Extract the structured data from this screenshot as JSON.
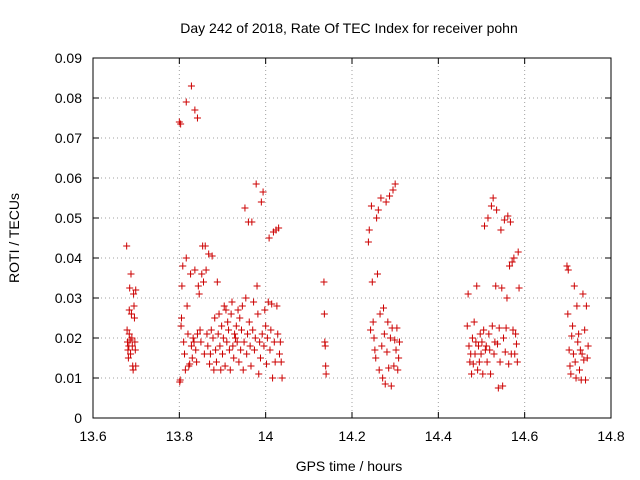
{
  "chart_data": {
    "type": "scatter",
    "title": "Day 242 of 2018, Rate Of TEC Index for receiver pohn",
    "xlabel": "GPS time / hours",
    "ylabel": "ROTI / TECUs",
    "xlim": [
      13.6,
      14.8
    ],
    "ylim": [
      0,
      0.09
    ],
    "xticks": [
      13.6,
      13.8,
      14.0,
      14.2,
      14.4,
      14.6,
      14.8
    ],
    "xtick_labels": [
      "13.6",
      "13.8",
      "14",
      "14.2",
      "14.4",
      "14.6",
      "14.8"
    ],
    "yticks": [
      0,
      0.01,
      0.02,
      0.03,
      0.04,
      0.05,
      0.06,
      0.07,
      0.08,
      0.09
    ],
    "ytick_labels": [
      "0",
      "0.01",
      "0.02",
      "0.03",
      "0.04",
      "0.05",
      "0.06",
      "0.07",
      "0.08",
      "0.09"
    ],
    "grid": true,
    "marker": "+",
    "marker_color": "#cc0000",
    "series": [
      {
        "name": "ROTI",
        "points": [
          [
            13.678,
            0.043
          ],
          [
            13.679,
            0.022
          ],
          [
            13.68,
            0.019
          ],
          [
            13.681,
            0.017
          ],
          [
            13.682,
            0.015
          ],
          [
            13.683,
            0.018
          ],
          [
            13.684,
            0.021
          ],
          [
            13.684,
            0.027
          ],
          [
            13.685,
            0.0325
          ],
          [
            13.686,
            0.0195
          ],
          [
            13.687,
            0.016
          ],
          [
            13.688,
            0.036
          ],
          [
            13.689,
            0.026
          ],
          [
            13.69,
            0.02
          ],
          [
            13.691,
            0.018
          ],
          [
            13.692,
            0.013
          ],
          [
            13.693,
            0.012
          ],
          [
            13.694,
            0.031
          ],
          [
            13.695,
            0.028
          ],
          [
            13.696,
            0.025
          ],
          [
            13.697,
            0.019
          ],
          [
            13.698,
            0.017
          ],
          [
            13.699,
            0.013
          ],
          [
            13.699,
            0.032
          ],
          [
            13.8,
            0.074
          ],
          [
            13.803,
            0.0735
          ],
          [
            13.816,
            0.079
          ],
          [
            13.828,
            0.083
          ],
          [
            13.836,
            0.077
          ],
          [
            13.842,
            0.075
          ],
          [
            13.801,
            0.009
          ],
          [
            13.802,
            0.0095
          ],
          [
            13.804,
            0.023
          ],
          [
            13.805,
            0.025
          ],
          [
            13.806,
            0.033
          ],
          [
            13.808,
            0.038
          ],
          [
            13.81,
            0.019
          ],
          [
            13.812,
            0.016
          ],
          [
            13.814,
            0.012
          ],
          [
            13.816,
            0.04
          ],
          [
            13.818,
            0.028
          ],
          [
            13.82,
            0.021
          ],
          [
            13.822,
            0.013
          ],
          [
            13.824,
            0.0135
          ],
          [
            13.826,
            0.036
          ],
          [
            13.828,
            0.018
          ],
          [
            13.83,
            0.015
          ],
          [
            13.832,
            0.02
          ],
          [
            13.834,
            0.019
          ],
          [
            13.836,
            0.037
          ],
          [
            13.838,
            0.017
          ],
          [
            13.84,
            0.014
          ],
          [
            13.842,
            0.021
          ],
          [
            13.844,
            0.033
          ],
          [
            13.846,
            0.031
          ],
          [
            13.848,
            0.022
          ],
          [
            13.85,
            0.019
          ],
          [
            13.852,
            0.036
          ],
          [
            13.854,
            0.043
          ],
          [
            13.856,
            0.034
          ],
          [
            13.858,
            0.016
          ],
          [
            13.86,
            0.043
          ],
          [
            13.862,
            0.037
          ],
          [
            13.864,
            0.021
          ],
          [
            13.866,
            0.018
          ],
          [
            13.868,
            0.041
          ],
          [
            13.87,
            0.0135
          ],
          [
            13.872,
            0.016
          ],
          [
            13.874,
            0.022
          ],
          [
            13.876,
            0.0405
          ],
          [
            13.878,
            0.02
          ],
          [
            13.88,
            0.012
          ],
          [
            13.882,
            0.025
          ],
          [
            13.884,
            0.017
          ],
          [
            13.886,
            0.014
          ],
          [
            13.888,
            0.034
          ],
          [
            13.89,
            0.021
          ],
          [
            13.892,
            0.026
          ],
          [
            13.894,
            0.018
          ],
          [
            13.896,
            0.012
          ],
          [
            13.898,
            0.023
          ],
          [
            13.9,
            0.016
          ],
          [
            13.902,
            0.02
          ],
          [
            13.904,
            0.028
          ],
          [
            13.906,
            0.013
          ],
          [
            13.908,
            0.027
          ],
          [
            13.91,
            0.019
          ],
          [
            13.912,
            0.024
          ],
          [
            13.914,
            0.022
          ],
          [
            13.916,
            0.017
          ],
          [
            13.918,
            0.012
          ],
          [
            13.92,
            0.026
          ],
          [
            13.922,
            0.029
          ],
          [
            13.924,
            0.018
          ],
          [
            13.926,
            0.015
          ],
          [
            13.928,
            0.021
          ],
          [
            13.93,
            0.02
          ],
          [
            13.932,
            0.023
          ],
          [
            13.934,
            0.019
          ],
          [
            13.936,
            0.027
          ],
          [
            13.938,
            0.014
          ],
          [
            13.94,
            0.025
          ],
          [
            13.942,
            0.017
          ],
          [
            13.944,
            0.022
          ],
          [
            13.946,
            0.028
          ],
          [
            13.948,
            0.012
          ],
          [
            13.95,
            0.019
          ],
          [
            13.952,
            0.0525
          ],
          [
            13.954,
            0.03
          ],
          [
            13.956,
            0.016
          ],
          [
            13.958,
            0.021
          ],
          [
            13.96,
            0.049
          ],
          [
            13.962,
            0.024
          ],
          [
            13.964,
            0.018
          ],
          [
            13.966,
            0.013
          ],
          [
            13.968,
            0.049
          ],
          [
            13.97,
            0.022
          ],
          [
            13.972,
            0.029
          ],
          [
            13.974,
            0.017
          ],
          [
            13.976,
            0.02
          ],
          [
            13.978,
            0.0585
          ],
          [
            13.98,
            0.033
          ],
          [
            13.982,
            0.026
          ],
          [
            13.984,
            0.011
          ],
          [
            13.986,
            0.019
          ],
          [
            13.988,
            0.015
          ],
          [
            13.99,
            0.054
          ],
          [
            13.992,
            0.021
          ],
          [
            13.994,
            0.0565
          ],
          [
            13.996,
            0.018
          ],
          [
            13.998,
            0.027
          ],
          [
            14.0,
            0.023
          ],
          [
            14.002,
            0.0135
          ],
          [
            14.004,
            0.02
          ],
          [
            14.006,
            0.029
          ],
          [
            14.008,
            0.045
          ],
          [
            14.01,
            0.017
          ],
          [
            14.012,
            0.022
          ],
          [
            14.014,
            0.0285
          ],
          [
            14.016,
            0.01
          ],
          [
            14.018,
            0.0465
          ],
          [
            14.02,
            0.019
          ],
          [
            14.022,
            0.014
          ],
          [
            14.024,
            0.047
          ],
          [
            14.026,
            0.028
          ],
          [
            14.028,
            0.021
          ],
          [
            14.03,
            0.0475
          ],
          [
            14.032,
            0.016
          ],
          [
            14.034,
            0.019
          ],
          [
            14.036,
            0.014
          ],
          [
            14.038,
            0.01
          ],
          [
            14.135,
            0.034
          ],
          [
            14.136,
            0.026
          ],
          [
            14.137,
            0.019
          ],
          [
            14.138,
            0.018
          ],
          [
            14.139,
            0.013
          ],
          [
            14.14,
            0.011
          ],
          [
            14.238,
            0.044
          ],
          [
            14.24,
            0.047
          ],
          [
            14.243,
            0.022
          ],
          [
            14.245,
            0.053
          ],
          [
            14.247,
            0.034
          ],
          [
            14.249,
            0.024
          ],
          [
            14.251,
            0.02
          ],
          [
            14.253,
            0.017
          ],
          [
            14.255,
            0.015
          ],
          [
            14.257,
            0.05
          ],
          [
            14.259,
            0.036
          ],
          [
            14.261,
            0.052
          ],
          [
            14.263,
            0.012
          ],
          [
            14.265,
            0.026
          ],
          [
            14.267,
            0.055
          ],
          [
            14.269,
            0.018
          ],
          [
            14.271,
            0.01
          ],
          [
            14.273,
            0.0275
          ],
          [
            14.275,
            0.021
          ],
          [
            14.277,
            0.0085
          ],
          [
            14.279,
            0.054
          ],
          [
            14.281,
            0.0165
          ],
          [
            14.283,
            0.024
          ],
          [
            14.285,
            0.0125
          ],
          [
            14.287,
            0.0555
          ],
          [
            14.289,
            0.02
          ],
          [
            14.291,
            0.008
          ],
          [
            14.293,
            0.0225
          ],
          [
            14.295,
            0.057
          ],
          [
            14.297,
            0.013
          ],
          [
            14.299,
            0.0195
          ],
          [
            14.3,
            0.0585
          ],
          [
            14.302,
            0.017
          ],
          [
            14.304,
            0.0225
          ],
          [
            14.306,
            0.012
          ],
          [
            14.308,
            0.015
          ],
          [
            14.31,
            0.019
          ],
          [
            14.467,
            0.023
          ],
          [
            14.469,
            0.031
          ],
          [
            14.471,
            0.018
          ],
          [
            14.473,
            0.014
          ],
          [
            14.475,
            0.016
          ],
          [
            14.477,
            0.011
          ],
          [
            14.479,
            0.02
          ],
          [
            14.481,
            0.0135
          ],
          [
            14.483,
            0.024
          ],
          [
            14.485,
            0.016
          ],
          [
            14.487,
            0.019
          ],
          [
            14.489,
            0.033
          ],
          [
            14.491,
            0.012
          ],
          [
            14.493,
            0.018
          ],
          [
            14.495,
            0.014
          ],
          [
            14.497,
            0.021
          ],
          [
            14.499,
            0.016
          ],
          [
            14.501,
            0.019
          ],
          [
            14.503,
            0.011
          ],
          [
            14.505,
            0.022
          ],
          [
            14.507,
            0.048
          ],
          [
            14.509,
            0.017
          ],
          [
            14.511,
            0.018
          ],
          [
            14.513,
            0.014
          ],
          [
            14.515,
            0.05
          ],
          [
            14.517,
            0.021
          ],
          [
            14.519,
            0.017
          ],
          [
            14.521,
            0.011
          ],
          [
            14.523,
            0.053
          ],
          [
            14.525,
            0.023
          ],
          [
            14.527,
            0.055
          ],
          [
            14.529,
            0.016
          ],
          [
            14.531,
            0.019
          ],
          [
            14.533,
            0.033
          ],
          [
            14.535,
            0.052
          ],
          [
            14.537,
            0.0185
          ],
          [
            14.539,
            0.0075
          ],
          [
            14.541,
            0.0225
          ],
          [
            14.543,
            0.014
          ],
          [
            14.545,
            0.047
          ],
          [
            14.547,
            0.0325
          ],
          [
            14.549,
            0.008
          ],
          [
            14.551,
            0.02
          ],
          [
            14.553,
            0.0495
          ],
          [
            14.555,
            0.0165
          ],
          [
            14.557,
            0.0225
          ],
          [
            14.559,
            0.03
          ],
          [
            14.561,
            0.0505
          ],
          [
            14.563,
            0.0135
          ],
          [
            14.565,
            0.038
          ],
          [
            14.567,
            0.049
          ],
          [
            14.569,
            0.016
          ],
          [
            14.571,
            0.039
          ],
          [
            14.573,
            0.022
          ],
          [
            14.575,
            0.04
          ],
          [
            14.577,
            0.016
          ],
          [
            14.579,
            0.021
          ],
          [
            14.581,
            0.0185
          ],
          [
            14.583,
            0.014
          ],
          [
            14.585,
            0.0415
          ],
          [
            14.587,
            0.0325
          ],
          [
            14.698,
            0.038
          ],
          [
            14.7,
            0.026
          ],
          [
            14.701,
            0.037
          ],
          [
            14.703,
            0.017
          ],
          [
            14.705,
            0.013
          ],
          [
            14.707,
            0.011
          ],
          [
            14.709,
            0.0205
          ],
          [
            14.711,
            0.023
          ],
          [
            14.713,
            0.016
          ],
          [
            14.715,
            0.033
          ],
          [
            14.717,
            0.014
          ],
          [
            14.719,
            0.01
          ],
          [
            14.721,
            0.028
          ],
          [
            14.723,
            0.019
          ],
          [
            14.725,
            0.021
          ],
          [
            14.727,
            0.012
          ],
          [
            14.729,
            0.017
          ],
          [
            14.731,
            0.0095
          ],
          [
            14.733,
            0.016
          ],
          [
            14.735,
            0.031
          ],
          [
            14.737,
            0.0145
          ],
          [
            14.739,
            0.022
          ],
          [
            14.741,
            0.0095
          ],
          [
            14.743,
            0.028
          ],
          [
            14.745,
            0.015
          ],
          [
            14.747,
            0.018
          ]
        ]
      }
    ]
  }
}
